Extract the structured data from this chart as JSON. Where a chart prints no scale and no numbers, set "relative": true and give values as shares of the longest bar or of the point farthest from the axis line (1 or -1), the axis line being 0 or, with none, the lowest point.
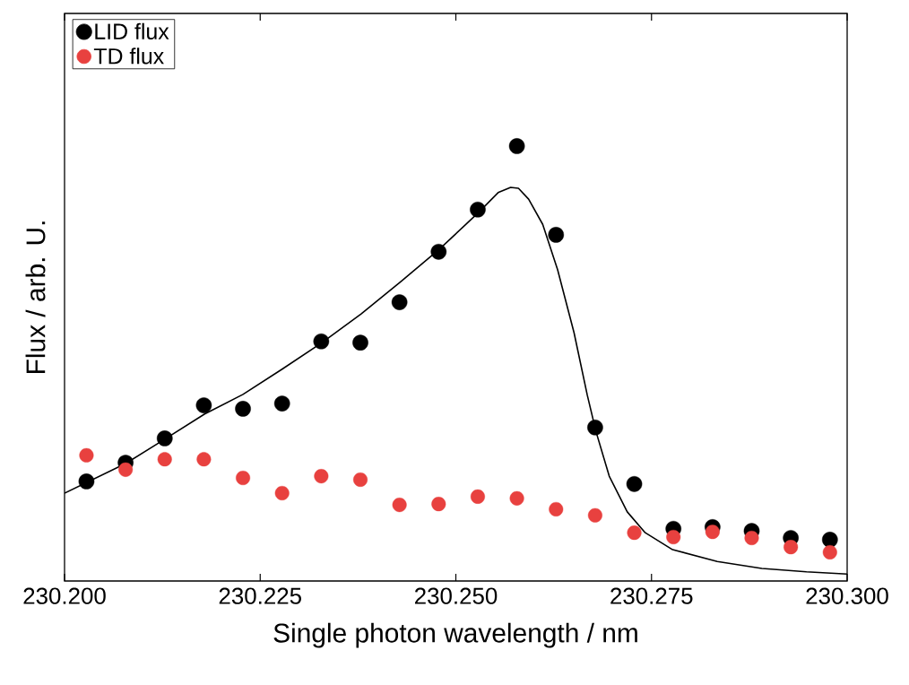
{
  "chart_data": {
    "type": "scatter",
    "xlabel": "Single photon wavelength / nm",
    "ylabel": "Flux / arb. U.",
    "relative": true,
    "legend": "top left",
    "x": [
      230.2028,
      230.2078,
      230.2128,
      230.2178,
      230.2228,
      230.2278,
      230.2328,
      230.2378,
      230.2428,
      230.2478,
      230.2528,
      230.2578,
      230.2628,
      230.2678,
      230.2728,
      230.2778,
      230.2828,
      230.2878,
      230.2928,
      230.2978
    ],
    "xlim": [
      230.2,
      230.3
    ],
    "xticks": [
      {
        "value": 230.2,
        "label": "230.200"
      },
      {
        "value": 230.225,
        "label": "230.225"
      },
      {
        "value": 230.25,
        "label": "230.250"
      },
      {
        "value": 230.275,
        "label": "230.275"
      },
      {
        "value": 230.3,
        "label": "230.300"
      }
    ],
    "series": [
      {
        "name": "LID flux",
        "color": "#000000",
        "marker": "circle",
        "values": [
          0.229,
          0.272,
          0.328,
          0.404,
          0.396,
          0.408,
          0.551,
          0.548,
          0.641,
          0.757,
          0.854,
          1.0,
          0.796,
          0.353,
          0.223,
          0.12,
          0.124,
          0.115,
          0.099,
          0.095
        ]
      },
      {
        "name": "TD flux",
        "color": "#e8413f",
        "marker": "circle",
        "values": [
          0.289,
          0.256,
          0.28,
          0.28,
          0.237,
          0.202,
          0.241,
          0.233,
          0.175,
          0.177,
          0.194,
          0.19,
          0.165,
          0.151,
          0.111,
          0.101,
          0.113,
          0.099,
          0.078,
          0.066
        ]
      },
      {
        "type": "line",
        "marker": "none",
        "color": "#000000",
        "x": [
          230.2,
          230.2078,
          230.2128,
          230.2179,
          230.2228,
          230.2278,
          230.2329,
          230.2379,
          230.243,
          230.2479,
          230.253,
          230.2554,
          230.257,
          230.258,
          230.2593,
          230.2611,
          230.263,
          230.2651,
          230.2668,
          230.2679,
          230.2696,
          230.2719,
          230.2742,
          230.2777,
          230.2834,
          230.2891,
          230.2948,
          230.3
        ],
        "values": [
          0.202,
          0.27,
          0.326,
          0.384,
          0.429,
          0.487,
          0.548,
          0.614,
          0.689,
          0.763,
          0.849,
          0.893,
          0.905,
          0.903,
          0.878,
          0.82,
          0.716,
          0.571,
          0.427,
          0.344,
          0.241,
          0.159,
          0.111,
          0.072,
          0.045,
          0.029,
          0.021,
          0.016
        ]
      }
    ]
  }
}
